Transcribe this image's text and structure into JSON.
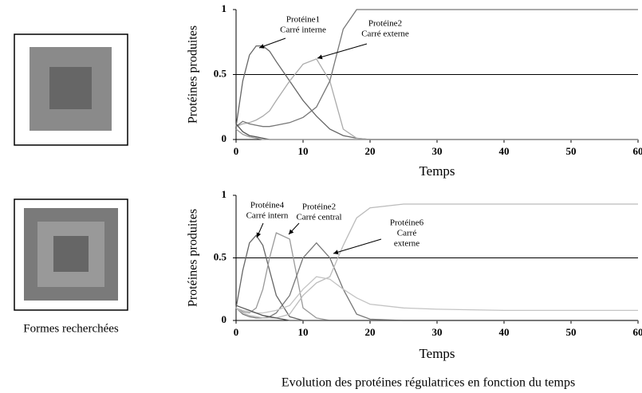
{
  "caption": "Evolution des protéines régulatrices en fonction du temps",
  "left_label": "Formes recherchées",
  "chart_data": [
    {
      "type": "line",
      "xlabel": "Temps",
      "ylabel": "Protéines produites",
      "x": [
        0,
        1,
        2,
        3,
        4,
        5,
        6,
        8,
        10,
        12,
        14,
        16,
        18,
        20,
        25,
        30,
        40,
        50,
        60
      ],
      "xlim": [
        0,
        60
      ],
      "ylim": [
        0,
        1
      ],
      "xticks": [
        0,
        10,
        20,
        30,
        40,
        50,
        60
      ],
      "yticks": [
        0,
        0.5,
        1
      ],
      "reference_line": 0.5,
      "series": [
        {
          "color": "#666666",
          "values": [
            0.1,
            0.45,
            0.65,
            0.72,
            0.72,
            0.68,
            0.6,
            0.45,
            0.3,
            0.18,
            0.08,
            0.03,
            0.01,
            0,
            0,
            0,
            0,
            0,
            0
          ]
        },
        {
          "color": "#aaaaaa",
          "values": [
            0.1,
            0.12,
            0.13,
            0.15,
            0.18,
            0.22,
            0.3,
            0.45,
            0.58,
            0.62,
            0.45,
            0.08,
            0.01,
            0,
            0,
            0,
            0,
            0,
            0
          ]
        },
        {
          "color": "#777777",
          "values": [
            0.1,
            0.14,
            0.12,
            0.11,
            0.1,
            0.1,
            0.11,
            0.13,
            0.17,
            0.25,
            0.45,
            0.85,
            1,
            1,
            1,
            1,
            1,
            1,
            1
          ]
        },
        {
          "color": "#555555",
          "values": [
            0.12,
            0.06,
            0.03,
            0.02,
            0.01,
            0,
            0,
            0,
            0,
            0,
            0,
            0,
            0,
            0,
            0,
            0,
            0,
            0,
            0
          ]
        },
        {
          "color": "#999999",
          "values": [
            0.08,
            0.04,
            0.02,
            0.01,
            0,
            0,
            0,
            0,
            0,
            0,
            0,
            0,
            0,
            0,
            0,
            0,
            0,
            0,
            0
          ]
        }
      ],
      "annotations": [
        [
          "Protéine1",
          "Carré interne"
        ],
        [
          "Protéine2",
          "Carré externe"
        ]
      ]
    },
    {
      "type": "line",
      "xlabel": "Temps",
      "ylabel": "Protéines produites",
      "x": [
        0,
        1,
        2,
        3,
        4,
        5,
        6,
        8,
        10,
        12,
        14,
        16,
        18,
        20,
        25,
        30,
        40,
        50,
        60
      ],
      "xlim": [
        0,
        60
      ],
      "ylim": [
        0,
        1
      ],
      "xticks": [
        0,
        10,
        20,
        30,
        40,
        50,
        60
      ],
      "yticks": [
        0,
        0.5,
        1
      ],
      "reference_line": 0.5,
      "series": [
        {
          "color": "#666666",
          "values": [
            0.1,
            0.4,
            0.62,
            0.68,
            0.6,
            0.4,
            0.2,
            0.03,
            0,
            0,
            0,
            0,
            0,
            0,
            0,
            0,
            0,
            0,
            0
          ]
        },
        {
          "color": "#999999",
          "values": [
            0.1,
            0.07,
            0.06,
            0.1,
            0.25,
            0.5,
            0.7,
            0.65,
            0.1,
            0.02,
            0,
            0,
            0,
            0,
            0,
            0,
            0,
            0,
            0
          ]
        },
        {
          "color": "#777777",
          "values": [
            0.1,
            0.05,
            0.03,
            0.02,
            0.02,
            0.03,
            0.06,
            0.2,
            0.5,
            0.62,
            0.5,
            0.25,
            0.05,
            0.01,
            0,
            0,
            0,
            0,
            0
          ]
        },
        {
          "color": "#bbbbbb",
          "values": [
            0.1,
            0.06,
            0.04,
            0.03,
            0.02,
            0.02,
            0.02,
            0.05,
            0.2,
            0.3,
            0.35,
            0.6,
            0.82,
            0.9,
            0.93,
            0.93,
            0.93,
            0.93,
            0.93
          ]
        },
        {
          "color": "#c4c4c4",
          "values": [
            0.1,
            0.08,
            0.07,
            0.06,
            0.06,
            0.07,
            0.08,
            0.12,
            0.25,
            0.35,
            0.33,
            0.25,
            0.18,
            0.13,
            0.1,
            0.09,
            0.08,
            0.08,
            0.08
          ]
        },
        {
          "color": "#555555",
          "values": [
            0.12,
            0.1,
            0.08,
            0.06,
            0.04,
            0.03,
            0.02,
            0,
            0,
            0,
            0,
            0,
            0,
            0,
            0,
            0,
            0,
            0,
            0
          ]
        }
      ],
      "annotations": [
        [
          "Protéine4",
          "Carré intern"
        ],
        [
          "Protéine2",
          "Carré central"
        ],
        [
          "Protéine6",
          "Carré",
          "externe"
        ]
      ]
    }
  ]
}
